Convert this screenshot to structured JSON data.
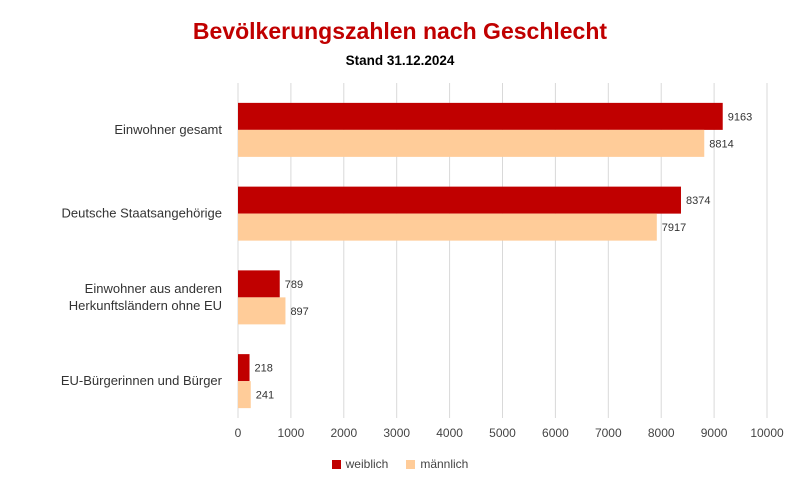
{
  "chart_data": {
    "type": "bar",
    "orientation": "horizontal",
    "title": "Bevölkerungszahlen nach Geschlecht",
    "subtitle": "Stand 31.12.2024",
    "categories": [
      "Einwohner gesamt",
      "Deutsche Staatsangehörige",
      "Einwohner aus anderen Herkunftsländern ohne EU",
      "EU-Bürgerinnen und Bürger"
    ],
    "category_lines": [
      [
        "Einwohner gesamt"
      ],
      [
        "Deutsche Staatsangehörige"
      ],
      [
        "Einwohner aus anderen",
        "Herkunftsländern ohne EU"
      ],
      [
        "EU-Bürgerinnen und Bürger"
      ]
    ],
    "series": [
      {
        "name": "weiblich",
        "values": [
          9163,
          8374,
          789,
          218
        ],
        "color": "#c00000"
      },
      {
        "name": "männlich",
        "values": [
          8814,
          7917,
          897,
          241
        ],
        "color": "#ffcc99"
      }
    ],
    "xlim": [
      0,
      10000
    ],
    "xticks": [
      0,
      1000,
      2000,
      3000,
      4000,
      5000,
      6000,
      7000,
      8000,
      9000,
      10000
    ],
    "grid": true,
    "legend_position": "bottom"
  }
}
